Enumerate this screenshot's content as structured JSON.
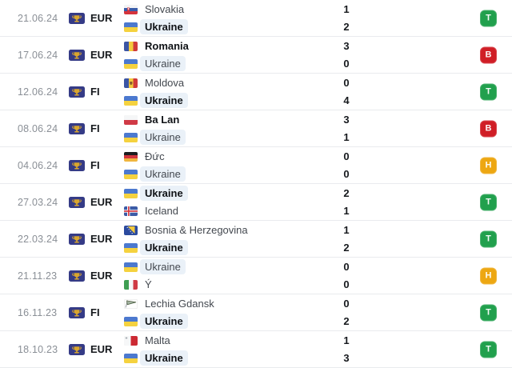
{
  "result_colors": {
    "T": "#21a04d",
    "B": "#d01e26",
    "H": "#eda712"
  },
  "highlight_color": "#eaf1f8",
  "matches": [
    {
      "date": "21.06.24",
      "competition": "EUR",
      "home": {
        "name": "Slovakia",
        "flag": "slovakia",
        "score": "1",
        "bold": false,
        "highlight": false
      },
      "away": {
        "name": "Ukraine",
        "flag": "ukraine",
        "score": "2",
        "bold": true,
        "highlight": true
      },
      "result": "T"
    },
    {
      "date": "17.06.24",
      "competition": "EUR",
      "home": {
        "name": "Romania",
        "flag": "romania",
        "score": "3",
        "bold": true,
        "highlight": false
      },
      "away": {
        "name": "Ukraine",
        "flag": "ukraine",
        "score": "0",
        "bold": false,
        "highlight": true
      },
      "result": "B"
    },
    {
      "date": "12.06.24",
      "competition": "FI",
      "home": {
        "name": "Moldova",
        "flag": "moldova",
        "score": "0",
        "bold": false,
        "highlight": false
      },
      "away": {
        "name": "Ukraine",
        "flag": "ukraine",
        "score": "4",
        "bold": true,
        "highlight": true
      },
      "result": "T"
    },
    {
      "date": "08.06.24",
      "competition": "FI",
      "home": {
        "name": "Ba Lan",
        "flag": "poland",
        "score": "3",
        "bold": true,
        "highlight": false
      },
      "away": {
        "name": "Ukraine",
        "flag": "ukraine",
        "score": "1",
        "bold": false,
        "highlight": true
      },
      "result": "B"
    },
    {
      "date": "04.06.24",
      "competition": "FI",
      "home": {
        "name": "Đức",
        "flag": "germany",
        "score": "0",
        "bold": false,
        "highlight": false
      },
      "away": {
        "name": "Ukraine",
        "flag": "ukraine",
        "score": "0",
        "bold": false,
        "highlight": true
      },
      "result": "H"
    },
    {
      "date": "27.03.24",
      "competition": "EUR",
      "home": {
        "name": "Ukraine",
        "flag": "ukraine",
        "score": "2",
        "bold": true,
        "highlight": true
      },
      "away": {
        "name": "Iceland",
        "flag": "iceland",
        "score": "1",
        "bold": false,
        "highlight": false
      },
      "result": "T"
    },
    {
      "date": "22.03.24",
      "competition": "EUR",
      "home": {
        "name": "Bosnia & Herzegovina",
        "flag": "bosnia",
        "score": "1",
        "bold": false,
        "highlight": false
      },
      "away": {
        "name": "Ukraine",
        "flag": "ukraine",
        "score": "2",
        "bold": true,
        "highlight": true
      },
      "result": "T"
    },
    {
      "date": "21.11.23",
      "competition": "EUR",
      "home": {
        "name": "Ukraine",
        "flag": "ukraine",
        "score": "0",
        "bold": false,
        "highlight": true
      },
      "away": {
        "name": "Ý",
        "flag": "italy",
        "score": "0",
        "bold": false,
        "highlight": false
      },
      "result": "H"
    },
    {
      "date": "16.11.23",
      "competition": "FI",
      "home": {
        "name": "Lechia Gdansk",
        "flag": "lechia",
        "score": "0",
        "bold": false,
        "highlight": false
      },
      "away": {
        "name": "Ukraine",
        "flag": "ukraine",
        "score": "2",
        "bold": true,
        "highlight": true
      },
      "result": "T"
    },
    {
      "date": "18.10.23",
      "competition": "EUR",
      "home": {
        "name": "Malta",
        "flag": "malta",
        "score": "1",
        "bold": false,
        "highlight": false
      },
      "away": {
        "name": "Ukraine",
        "flag": "ukraine",
        "score": "3",
        "bold": true,
        "highlight": true
      },
      "result": "T"
    }
  ]
}
